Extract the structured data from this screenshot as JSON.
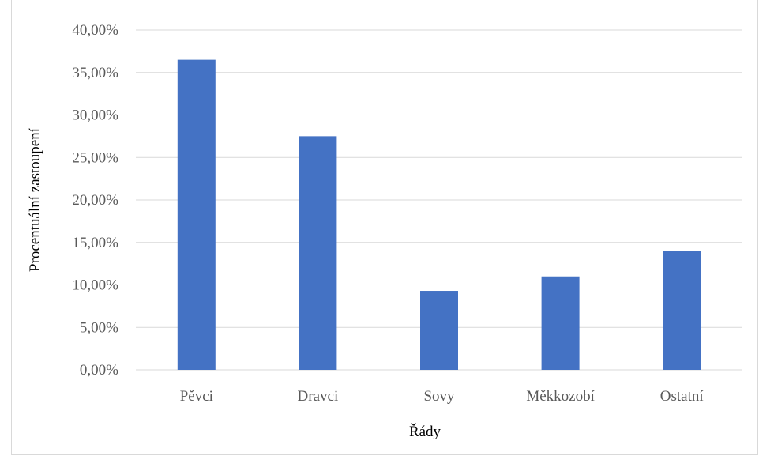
{
  "chart_data": {
    "type": "bar",
    "title": "",
    "xlabel": "Řády",
    "ylabel": "Procentuální zastoupení",
    "categories": [
      "Pěvci",
      "Dravci",
      "Sovy",
      "Měkkozobí",
      "Ostatní"
    ],
    "values": [
      36.5,
      27.5,
      9.3,
      11.0,
      14.0
    ],
    "ylim": [
      0,
      40
    ],
    "yticks": [
      0,
      5,
      10,
      15,
      20,
      25,
      30,
      35,
      40
    ],
    "ytick_labels": [
      "0,00%",
      "5,00%",
      "10,00%",
      "15,00%",
      "20,00%",
      "25,00%",
      "30,00%",
      "35,00%",
      "40,00%"
    ],
    "grid": true,
    "legend": "none",
    "bar_color": "#4472C4"
  }
}
